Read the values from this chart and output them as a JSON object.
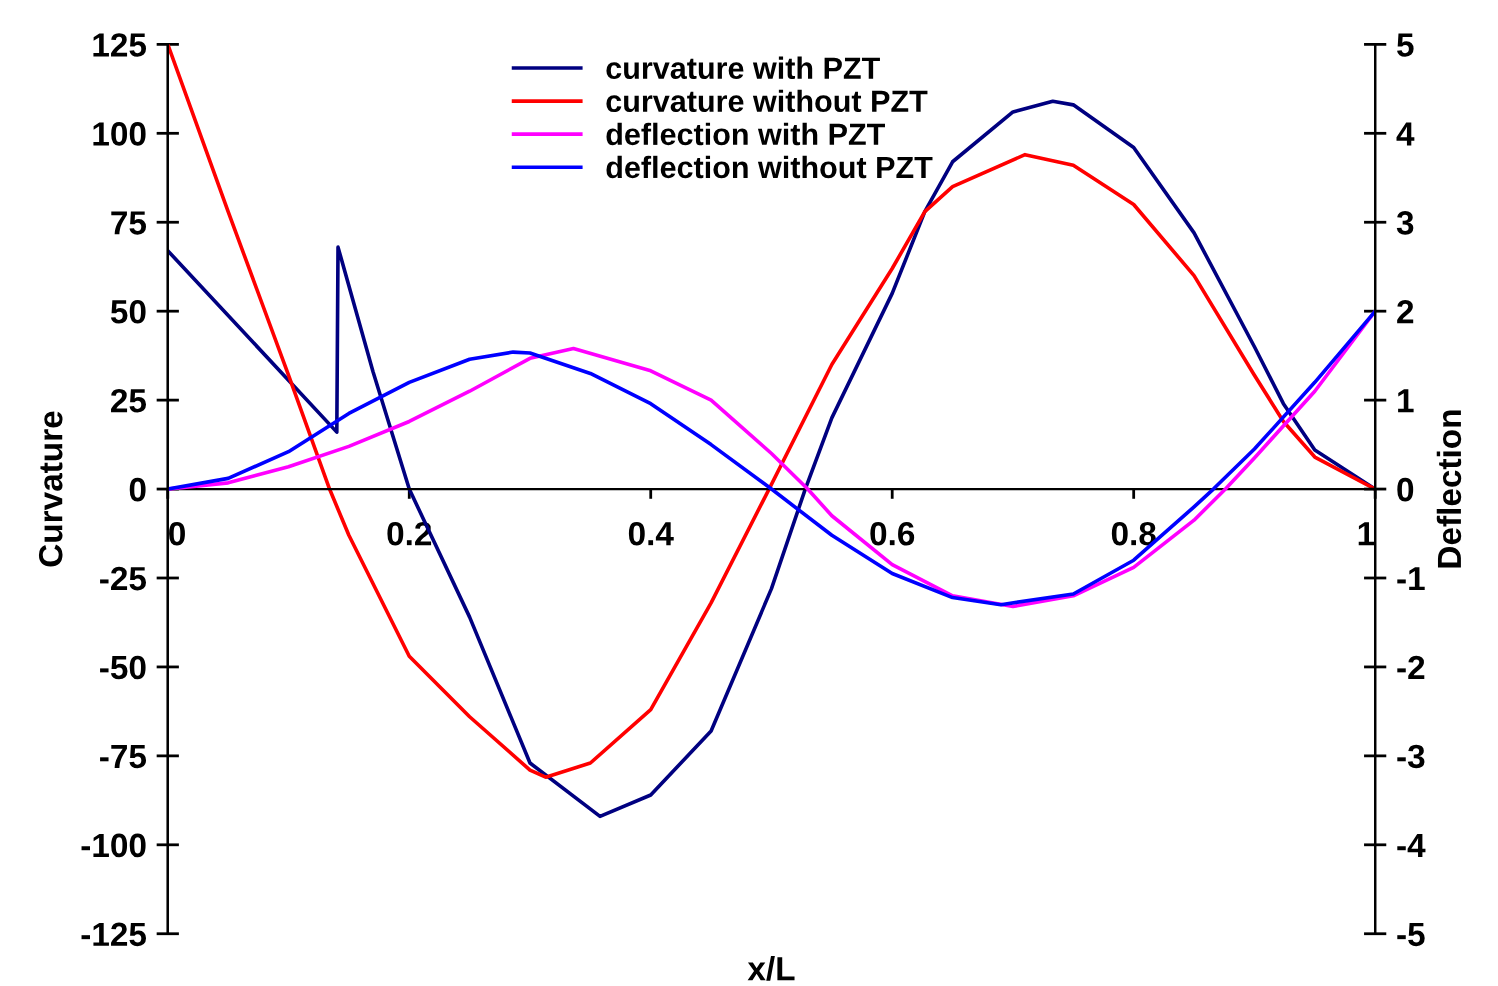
{
  "chart_data": {
    "type": "line",
    "xlabel": "x/L",
    "ylabel": "Curvature",
    "y2label": "Deflection",
    "xlim": [
      0,
      1
    ],
    "xticks": [
      0,
      0.2,
      0.4,
      0.6,
      0.8,
      1
    ],
    "ylim": [
      -125,
      125
    ],
    "yticks": [
      -125,
      -100,
      -75,
      -50,
      -25,
      0,
      25,
      50,
      75,
      100,
      125
    ],
    "y2lim": [
      -5,
      5
    ],
    "y2ticks": [
      -5,
      -4,
      -3,
      -2,
      -1,
      0,
      1,
      2,
      3,
      4,
      5
    ],
    "grid": false,
    "legend": "top",
    "marker": "none",
    "line_style": "solid",
    "series": [
      {
        "name": "curvature with PZT",
        "color": "#000080",
        "x": [
          0,
          0.14,
          0.141,
          0.17,
          0.2,
          0.25,
          0.3,
          0.358,
          0.4,
          0.45,
          0.5,
          0.528,
          0.55,
          0.6,
          0.627,
          0.65,
          0.7,
          0.733,
          0.75,
          0.8,
          0.85,
          0.9,
          0.924,
          0.95,
          1
        ],
        "values": [
          67,
          16,
          68,
          33,
          0,
          -36,
          -77,
          -92,
          -86,
          -68,
          -28,
          0,
          20,
          55,
          78,
          92,
          106,
          109,
          108,
          96,
          72,
          40,
          24,
          11,
          0
        ]
      },
      {
        "name": "curvature without PZT",
        "color": "#ff0000",
        "x": [
          0,
          0.05,
          0.1,
          0.134,
          0.15,
          0.2,
          0.25,
          0.3,
          0.313,
          0.35,
          0.4,
          0.45,
          0.498,
          0.55,
          0.6,
          0.627,
          0.65,
          0.71,
          0.75,
          0.8,
          0.85,
          0.9,
          0.924,
          0.95,
          1
        ],
        "values": [
          125,
          78,
          32,
          0,
          -13,
          -47,
          -64,
          -79,
          -81,
          -77,
          -62,
          -32,
          0,
          35,
          62,
          78,
          85,
          94,
          91,
          80,
          60,
          32,
          19,
          9,
          0
        ]
      },
      {
        "name": "deflection with PZT",
        "color": "#ff00ff",
        "axis": "y2",
        "x": [
          0,
          0.05,
          0.1,
          0.15,
          0.2,
          0.25,
          0.3,
          0.336,
          0.4,
          0.45,
          0.5,
          0.53,
          0.55,
          0.6,
          0.65,
          0.7,
          0.75,
          0.8,
          0.85,
          0.876,
          0.9,
          0.95,
          1
        ],
        "values": [
          0,
          0.07,
          0.25,
          0.48,
          0.76,
          1.1,
          1.47,
          1.58,
          1.33,
          1.0,
          0.4,
          0,
          -0.3,
          -0.85,
          -1.2,
          -1.32,
          -1.2,
          -0.88,
          -0.35,
          0,
          0.35,
          1.1,
          2
        ]
      },
      {
        "name": "deflection without PZT",
        "color": "#0000ff",
        "axis": "y2",
        "x": [
          0,
          0.05,
          0.1,
          0.15,
          0.2,
          0.25,
          0.286,
          0.3,
          0.35,
          0.4,
          0.45,
          0.5,
          0.55,
          0.6,
          0.65,
          0.69,
          0.75,
          0.8,
          0.85,
          0.866,
          0.9,
          0.95,
          1
        ],
        "values": [
          0,
          0.12,
          0.42,
          0.85,
          1.2,
          1.46,
          1.54,
          1.53,
          1.3,
          0.96,
          0.5,
          0,
          -0.52,
          -0.95,
          -1.22,
          -1.3,
          -1.18,
          -0.8,
          -0.2,
          0,
          0.45,
          1.2,
          2
        ]
      }
    ]
  }
}
